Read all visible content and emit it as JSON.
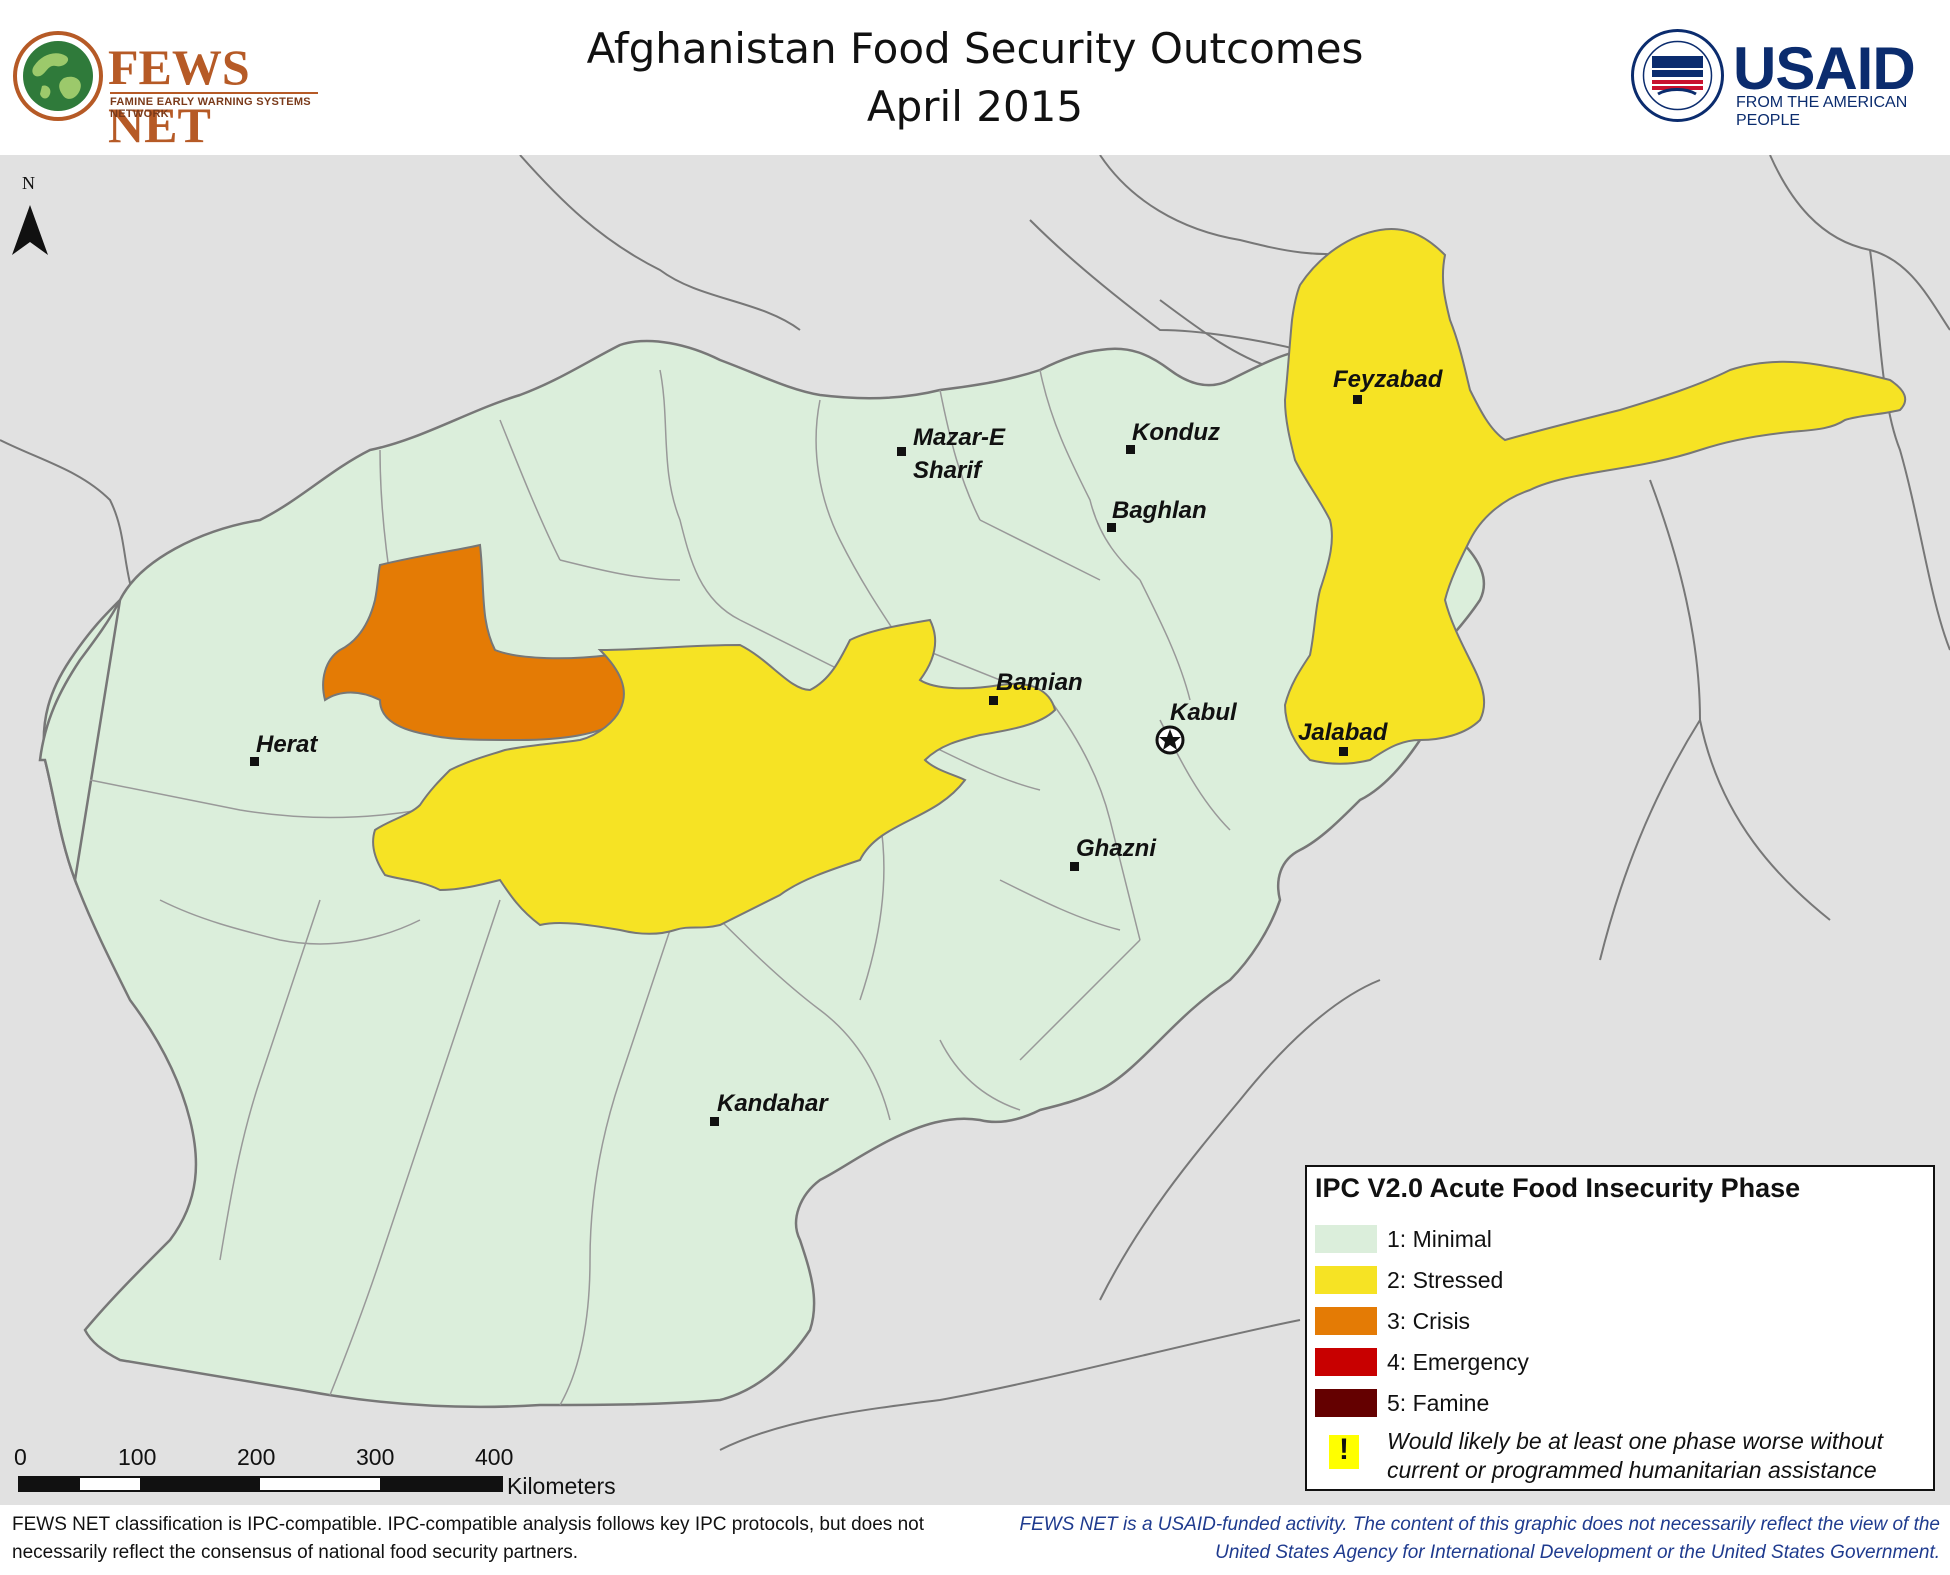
{
  "title": {
    "line1": "Afghanistan Food Security Outcomes",
    "line2": "April 2015"
  },
  "fews_logo": {
    "name": "FEWS NET",
    "subtitle": "FAMINE EARLY WARNING SYSTEMS NETWORK"
  },
  "usaid_logo": {
    "name": "USAID",
    "tagline": "FROM THE AMERICAN PEOPLE"
  },
  "north_arrow": {
    "label": "N"
  },
  "cities": {
    "feyzabad": "Feyzabad",
    "mazar_line1": "Mazar-E",
    "mazar_line2": "Sharif",
    "konduz": "Konduz",
    "baghlan": "Baghlan",
    "bamian": "Bamian",
    "kabul": "Kabul",
    "jalabad": "Jalabad",
    "herat": "Herat",
    "ghazni": "Ghazni",
    "kandahar": "Kandahar"
  },
  "legend": {
    "title": "IPC V2.0 Acute Food Insecurity Phase",
    "items": [
      {
        "label": "1: Minimal",
        "color": "#dbeedb"
      },
      {
        "label": "2: Stressed",
        "color": "#f6e324"
      },
      {
        "label": "3: Crisis",
        "color": "#e47b05"
      },
      {
        "label": "4: Emergency",
        "color": "#c80000"
      },
      {
        "label": "5: Famine",
        "color": "#640000"
      }
    ],
    "note_symbol": "!",
    "note": "Would likely be at least one phase worse without current or programmed humanitarian assistance"
  },
  "scalebar": {
    "ticks": [
      "0",
      "100",
      "200",
      "300",
      "400"
    ],
    "units": "Kilometers"
  },
  "footer": {
    "left": "FEWS NET classification is IPC-compatible. IPC-compatible analysis follows key IPC protocols, but does not necessarily reflect the consensus of national food security partners.",
    "right": "FEWS NET is a USAID-funded activity. The content of this graphic does not necessarily reflect the view of the United States Agency for International Development or the United States Government."
  },
  "colors": {
    "minimal": "#dbeedb",
    "stressed": "#f6e324",
    "crisis": "#e47b05",
    "background_land": "#e1e1e1",
    "borders": "#8a8a8a"
  }
}
